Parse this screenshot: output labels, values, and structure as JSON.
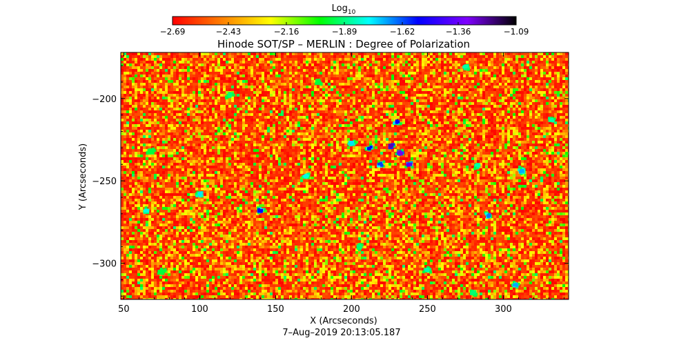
{
  "chart_data": {
    "type": "heatmap",
    "title": "Hinode SOT/SP – MERLIN : Degree of Polarization",
    "xlabel": "X (Arcseconds)",
    "ylabel": "Y (Arcseconds)",
    "timestamp": "7–Aug–2019 20:13:05.187",
    "xlim": [
      48,
      343
    ],
    "ylim": [
      -322,
      -172
    ],
    "x_ticks": [
      50,
      100,
      150,
      200,
      250,
      300
    ],
    "x_tick_labels": [
      "50",
      "100",
      "150",
      "200",
      "250",
      "300"
    ],
    "y_ticks": [
      -200,
      -250,
      -300
    ],
    "y_tick_labels": [
      "−200",
      "−250",
      "−300"
    ],
    "colorbar": {
      "label_base": "Log",
      "label_sub": "10",
      "scale": "log10",
      "min": -2.69,
      "max": -1.09,
      "ticks": [
        -2.69,
        -2.43,
        -2.16,
        -1.89,
        -1.62,
        -1.36,
        -1.09
      ],
      "tick_labels": [
        "−2.69",
        "−2.43",
        "−2.16",
        "−1.89",
        "−1.62",
        "−1.36",
        "−1.09"
      ],
      "colormap": [
        "#ff0000",
        "#ff7f00",
        "#ffff00",
        "#00ff00",
        "#00ffff",
        "#0000ff",
        "#7f00ff",
        "#000000"
      ]
    },
    "background_level": -2.55,
    "field_features": [
      {
        "x": 232,
        "y": -233,
        "value": -1.3
      },
      {
        "x": 226,
        "y": -229,
        "value": -1.25
      },
      {
        "x": 212,
        "y": -230,
        "value": -1.55
      },
      {
        "x": 200,
        "y": -227,
        "value": -1.75
      },
      {
        "x": 230,
        "y": -214,
        "value": -1.55
      },
      {
        "x": 238,
        "y": -240,
        "value": -1.4
      },
      {
        "x": 219,
        "y": -240,
        "value": -1.6
      },
      {
        "x": 170,
        "y": -247,
        "value": -1.8
      },
      {
        "x": 140,
        "y": -268,
        "value": -1.55
      },
      {
        "x": 65,
        "y": -268,
        "value": -1.8
      },
      {
        "x": 100,
        "y": -258,
        "value": -1.75
      },
      {
        "x": 290,
        "y": -271,
        "value": -1.65
      },
      {
        "x": 312,
        "y": -244,
        "value": -1.7
      },
      {
        "x": 332,
        "y": -213,
        "value": -1.85
      },
      {
        "x": 283,
        "y": -241,
        "value": -1.85
      },
      {
        "x": 250,
        "y": -304,
        "value": -1.85
      },
      {
        "x": 308,
        "y": -313,
        "value": -1.7
      },
      {
        "x": 280,
        "y": -318,
        "value": -1.9
      },
      {
        "x": 120,
        "y": -198,
        "value": -1.9
      },
      {
        "x": 275,
        "y": -181,
        "value": -1.85
      },
      {
        "x": 68,
        "y": -232,
        "value": -1.95
      },
      {
        "x": 178,
        "y": -190,
        "value": -1.95
      },
      {
        "x": 205,
        "y": -290,
        "value": -1.9
      },
      {
        "x": 75,
        "y": -305,
        "value": -1.95
      }
    ]
  }
}
